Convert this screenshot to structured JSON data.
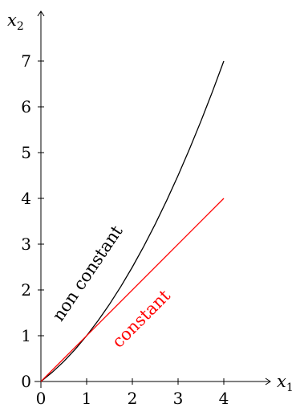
{
  "chart_data": {
    "type": "line",
    "title": "",
    "xlabel": {
      "base": "x",
      "sub": "1"
    },
    "ylabel": {
      "base": "x",
      "sub": "2"
    },
    "xlim": [
      0,
      5
    ],
    "ylim": [
      0,
      8
    ],
    "xticks": [
      "0",
      "1",
      "2",
      "3",
      "4"
    ],
    "yticks": [
      "0",
      "1",
      "2",
      "3",
      "4",
      "5",
      "6",
      "7"
    ],
    "grid": false,
    "legend": "none",
    "series": [
      {
        "name": "non constant",
        "color": "#000000",
        "x": [
          0,
          0.25,
          0.5,
          0.75,
          1,
          1.25,
          1.5,
          1.75,
          2,
          2.25,
          2.5,
          2.75,
          3,
          3.25,
          3.5,
          3.75,
          4
        ],
        "y": [
          0,
          0.2656,
          0.5625,
          0.8906,
          1.25,
          1.6406,
          2.0625,
          2.5156,
          3.0,
          3.5156,
          4.0625,
          4.6406,
          5.25,
          5.8906,
          6.5625,
          7.2656,
          7.0
        ]
      },
      {
        "name": "constant",
        "color": "#ff0000",
        "x": [
          0,
          4
        ],
        "y": [
          0,
          4
        ]
      }
    ]
  }
}
